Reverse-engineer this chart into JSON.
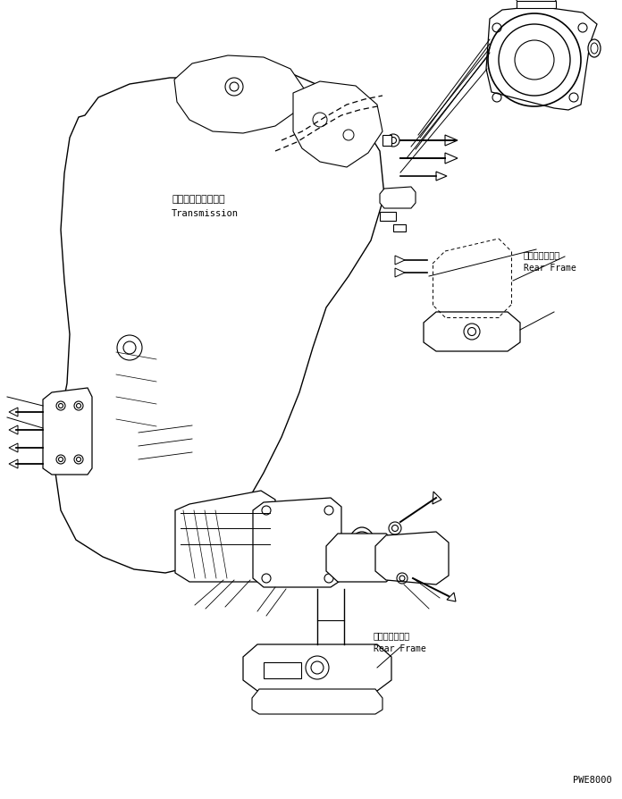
{
  "bg_color": "#ffffff",
  "line_color": "#000000",
  "fig_width": 6.96,
  "fig_height": 8.95,
  "dpi": 100,
  "watermark": "PWE8000",
  "label_transmission_ja": "トランスミッション",
  "label_transmission_en": "Transmission",
  "label_rear_frame_ja": "リヤーフレーム",
  "label_rear_frame_en": "Rear Frame"
}
